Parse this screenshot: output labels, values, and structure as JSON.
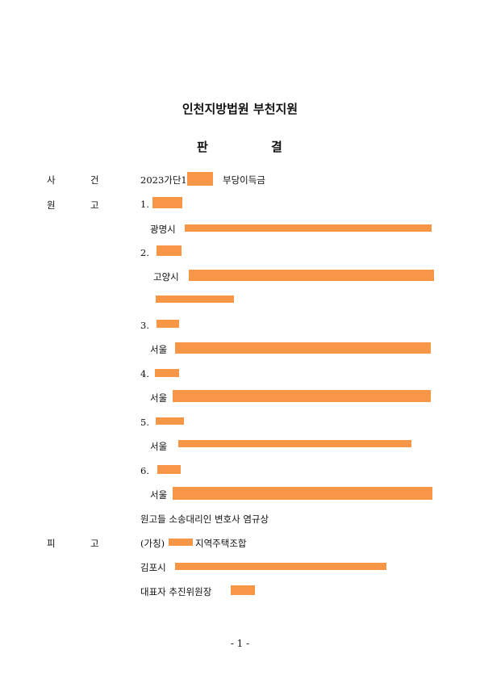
{
  "header": {
    "court": "인천지방법원 부천지원",
    "title_left": "판",
    "title_right": "결"
  },
  "case": {
    "label_1": "사",
    "label_2": "건",
    "number": "2023가단1",
    "name": "부당이득금"
  },
  "plaintiff": {
    "label_1": "원",
    "label_2": "고",
    "items": [
      {
        "num": "1.",
        "address": "광명시"
      },
      {
        "num": "2.",
        "address": "고양시"
      },
      {
        "num": "3.",
        "address": "서울"
      },
      {
        "num": "4.",
        "address": "서울"
      },
      {
        "num": "5.",
        "address": "서울"
      },
      {
        "num": "6.",
        "address": "서울"
      }
    ],
    "counsel": "원고들 소송대리인 변호사 염규상"
  },
  "defendant": {
    "label_1": "피",
    "label_2": "고",
    "name_prefix": "(가칭)",
    "name_suffix": "지역주택조합",
    "address": "김포시",
    "representative": "대표자 추진위원장"
  },
  "footer": {
    "page": "- 1 -"
  },
  "colors": {
    "redaction": "#f79646"
  }
}
